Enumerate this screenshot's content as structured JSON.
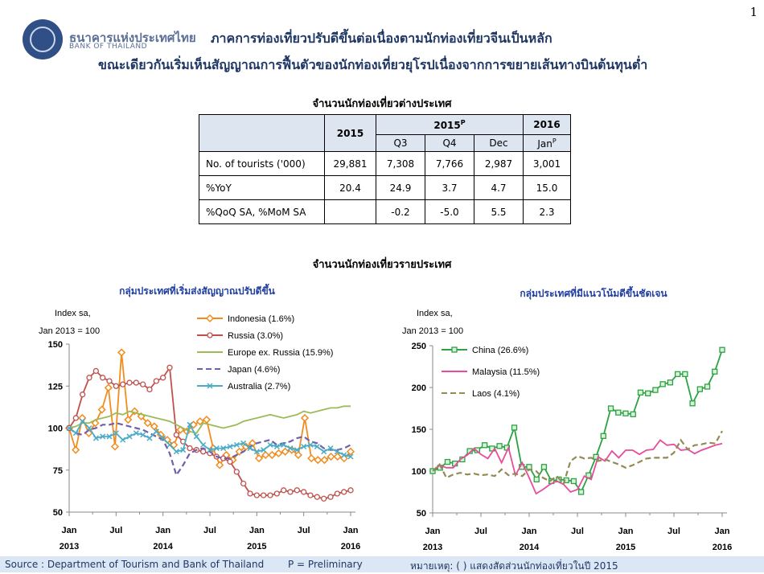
{
  "page_number": "1",
  "bank": {
    "name_th": "ธนาคารแห่งประเทศไทย",
    "name_en": "BANK OF THAILAND"
  },
  "headline": {
    "line1": "ภาคการท่องเที่ยวปรับดีขึ้นต่อเนื่องตามนักท่องเที่ยวจีนเป็นหลัก",
    "line2": "ขณะเดียวกันเริ่มเห็นสัญญาณการฟื้นตัวของนักท่องเที่ยวยุโรปเนื่องจากการขยายเส้นทางบินต้นทุนต่ำ"
  },
  "table": {
    "title": "จำนวนนักท่องเที่ยวต่างประเทศ",
    "col_2015": "2015",
    "col_2015p": "2015",
    "col_2015p_sup": "P",
    "col_2016": "2016",
    "sub_q3": "Q3",
    "sub_q4": "Q4",
    "sub_dec": "Dec",
    "sub_jan": "Jan",
    "sub_jan_sup": "P",
    "rows": [
      {
        "label": "No. of tourists ('000)",
        "values": [
          "29,881",
          "7,308",
          "7,766",
          "2,987",
          "3,001"
        ]
      },
      {
        "label": "%YoY",
        "values": [
          "20.4",
          "24.9",
          "3.7",
          "4.7",
          "15.0"
        ]
      },
      {
        "label": "%QoQ SA, %MoM SA",
        "values": [
          "",
          "-0.2",
          "-5.0",
          "5.5",
          "2.3"
        ]
      }
    ]
  },
  "section_title": "จำนวนนักท่องเที่ยวรายประเทศ",
  "footer": {
    "source": "Source : Department of Tourism and Bank of Thailand",
    "preliminary": "P = Preliminary",
    "note": "หมายเหตุ: ( ) แสดงสัดส่วนนักท่องเที่ยวในปี 2015"
  },
  "chart_data": [
    {
      "type": "line",
      "title": "กลุ่มประเทศที่เริ่มส่งสัญญาณปรับดีขึ้น",
      "ylabel_line1": "Index sa,",
      "ylabel_line2": "Jan 2013 = 100",
      "ylim": [
        50,
        150
      ],
      "yticks": [
        50,
        75,
        100,
        125,
        150
      ],
      "xtick_months": [
        "Jan",
        "Jul",
        "Jan",
        "Jul",
        "Jan",
        "Jul",
        "Jan"
      ],
      "xtick_years": [
        "2013",
        "2014",
        "2015",
        "2016"
      ],
      "legend_position": "top-right",
      "x_start": "2013-01",
      "x_end": "2016-01",
      "series": [
        {
          "name": "Indonesia (1.6%)",
          "color": "#f28c1e",
          "dash": "solid",
          "marker": "diamond",
          "values": [
            100,
            87,
            106,
            97,
            103,
            111,
            124,
            89,
            145,
            105,
            110,
            107,
            103,
            101,
            96,
            93,
            90,
            99,
            98,
            102,
            104,
            105,
            88,
            78,
            84,
            81,
            86,
            89,
            91,
            82,
            84,
            84,
            85,
            86,
            87,
            84,
            106,
            82,
            81,
            81,
            83,
            83,
            82,
            86
          ]
        },
        {
          "name": "Russia (3.0%)",
          "color": "#c0504d",
          "dash": "solid",
          "marker": "circle",
          "values": [
            100,
            106,
            120,
            130,
            134,
            130,
            128,
            125,
            126,
            127,
            127,
            126,
            123,
            128,
            130,
            136,
            96,
            92,
            88,
            87,
            86,
            85,
            83,
            82,
            80,
            74,
            67,
            61,
            60,
            60,
            60,
            61,
            63,
            62,
            63,
            62,
            60,
            59,
            58,
            59,
            61,
            62,
            63
          ]
        },
        {
          "name": "Europe ex. Russia (15.9%)",
          "color": "#9bbb59",
          "dash": "solid",
          "marker": "none",
          "values": [
            100,
            101,
            103,
            103,
            105,
            106,
            107,
            109,
            108,
            110,
            109,
            108,
            107,
            106,
            105,
            104,
            102,
            100,
            98,
            97,
            103,
            102,
            101,
            100,
            101,
            102,
            104,
            105,
            106,
            107,
            108,
            107,
            106,
            107,
            108,
            110,
            109,
            110,
            111,
            112,
            112,
            113,
            113
          ]
        },
        {
          "name": "Japan (4.6%)",
          "color": "#7060a8",
          "dash": "dashed",
          "marker": "none",
          "values": [
            100,
            97,
            96,
            99,
            100,
            102,
            102,
            103,
            102,
            101,
            100,
            99,
            97,
            95,
            93,
            85,
            72,
            78,
            85,
            87,
            88,
            86,
            83,
            82,
            82,
            84,
            86,
            89,
            91,
            92,
            93,
            90,
            91,
            92,
            94,
            95,
            92,
            91,
            88,
            87,
            87,
            88,
            90
          ]
        },
        {
          "name": "Australia (2.7%)",
          "color": "#4bacc6",
          "dash": "solid",
          "marker": "x",
          "values": [
            100,
            97,
            104,
            100,
            94,
            95,
            95,
            97,
            93,
            95,
            97,
            96,
            94,
            98,
            94,
            90,
            86,
            87,
            102,
            95,
            90,
            87,
            88,
            88,
            89,
            90,
            91,
            88,
            86,
            87,
            90,
            89,
            90,
            88,
            87,
            89,
            90,
            89,
            86,
            88,
            86,
            84,
            83
          ]
        }
      ]
    },
    {
      "type": "line",
      "title": "กลุ่มประเทศที่มีแนวโน้มดีขึ้นชัดเจน",
      "ylabel_line1": "Index sa,",
      "ylabel_line2": "Jan 2013 = 100",
      "ylim": [
        50,
        250
      ],
      "yticks": [
        50,
        100,
        150,
        200,
        250
      ],
      "xtick_months": [
        "Jan",
        "Jul",
        "Jan",
        "Jul",
        "Jan",
        "Jul",
        "Jan"
      ],
      "xtick_years": [
        "2013",
        "2014",
        "2015",
        "2016"
      ],
      "legend_position": "top-left",
      "x_start": "2013-01",
      "x_end": "2016-01",
      "series": [
        {
          "name": "China (26.6%)",
          "color": "#2ca243",
          "dash": "solid",
          "marker": "square",
          "values": [
            100,
            104,
            111,
            109,
            114,
            124,
            125,
            131,
            127,
            130,
            128,
            152,
            105,
            105,
            90,
            105,
            88,
            90,
            89,
            88,
            75,
            95,
            117,
            142,
            175,
            170,
            169,
            168,
            194,
            193,
            197,
            204,
            206,
            216,
            216,
            181,
            198,
            201,
            219,
            245
          ]
        },
        {
          "name": "Malaysia (11.5%)",
          "color": "#e84c9a",
          "dash": "solid",
          "marker": "none",
          "values": [
            100,
            107,
            104,
            104,
            114,
            119,
            127,
            120,
            115,
            127,
            110,
            128,
            95,
            110,
            92,
            73,
            78,
            84,
            88,
            84,
            75,
            78,
            94,
            90,
            117,
            112,
            124,
            116,
            125,
            125,
            120,
            125,
            126,
            137,
            131,
            132,
            125,
            126,
            121,
            125,
            128,
            131,
            133
          ]
        },
        {
          "name": "Laos (4.1%)",
          "color": "#948a54",
          "dash": "dashed",
          "marker": "none",
          "values": [
            100,
            108,
            92,
            96,
            98,
            96,
            97,
            95,
            96,
            94,
            102,
            95,
            97,
            94,
            102,
            100,
            92,
            88,
            94,
            85,
            112,
            118,
            115,
            116,
            112,
            114,
            111,
            108,
            104,
            107,
            111,
            115,
            116,
            116,
            116,
            122,
            137,
            126,
            131,
            132,
            134,
            133,
            148
          ]
        }
      ]
    }
  ]
}
